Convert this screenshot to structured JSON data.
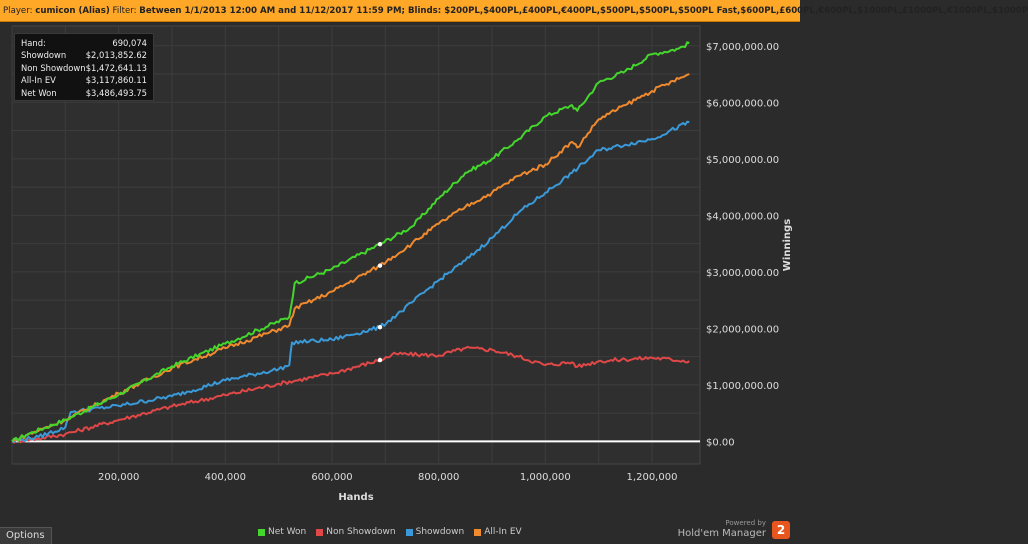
{
  "filter_bar": {
    "player_label": "Player:",
    "player_value": "cumicon (Alias)",
    "filter_label": "Filter:",
    "filter_value": "Between 1/1/2013 12:00 AM and 11/12/2017 11:59 PM; Blinds: $200PL,$400PL,£400PL,€400PL,$500PL,$500PL,$500PL Fast,$600PL,£600PL,€600PL,$1000PL,£1000PL,€1000PL,$1000P"
  },
  "stats": [
    {
      "label": "Hand:",
      "value": "690,074"
    },
    {
      "label": "Showdown",
      "value": "$2,013,852.62"
    },
    {
      "label": "Non Showdown",
      "value": "$1,472,641.13"
    },
    {
      "label": "All-In EV",
      "value": "$3,117,860.11"
    },
    {
      "label": "Net Won",
      "value": "$3,486,493.75"
    }
  ],
  "footer": {
    "options_label": "Options",
    "brand_small": "Powered by",
    "brand_name": "Hold'em Manager",
    "brand_badge": "2"
  },
  "chart_data": {
    "type": "line",
    "title": "",
    "xlabel": "Hands",
    "ylabel": "Winnings",
    "xlim": [
      0,
      1290000
    ],
    "ylim": [
      -400000,
      7350000
    ],
    "x_ticks": [
      200000,
      400000,
      600000,
      800000,
      1000000,
      1200000
    ],
    "x_tick_labels": [
      "200,000",
      "400,000",
      "600,000",
      "800,000",
      "1,000,000",
      "1,200,000"
    ],
    "y_ticks": [
      0,
      1000000,
      2000000,
      3000000,
      4000000,
      5000000,
      6000000,
      7000000
    ],
    "y_tick_labels": [
      "$0.00",
      "$1,000,000.00",
      "$2,000,000.00",
      "$3,000,000.00",
      "$4,000,000.00",
      "$5,000,000.00",
      "$6,000,000.00",
      "$7,000,000.00"
    ],
    "grid": true,
    "legend_position": "bottom",
    "series": [
      {
        "name": "Net Won",
        "color": "#44d62c",
        "points": [
          [
            0,
            0
          ],
          [
            30000,
            130000
          ],
          [
            100000,
            380000
          ],
          [
            200000,
            830000
          ],
          [
            300000,
            1330000
          ],
          [
            400000,
            1730000
          ],
          [
            520000,
            2200000
          ],
          [
            530000,
            2800000
          ],
          [
            600000,
            3050000
          ],
          [
            690000,
            3490000
          ],
          [
            750000,
            3800000
          ],
          [
            800000,
            4300000
          ],
          [
            850000,
            4750000
          ],
          [
            900000,
            5000000
          ],
          [
            950000,
            5350000
          ],
          [
            1000000,
            5750000
          ],
          [
            1050000,
            5950000
          ],
          [
            1060000,
            5850000
          ],
          [
            1100000,
            6350000
          ],
          [
            1150000,
            6550000
          ],
          [
            1200000,
            6850000
          ],
          [
            1250000,
            6950000
          ],
          [
            1270000,
            7050000
          ]
        ]
      },
      {
        "name": "Non Showdown",
        "color": "#e04848",
        "points": [
          [
            0,
            0
          ],
          [
            50000,
            50000
          ],
          [
            100000,
            130000
          ],
          [
            200000,
            380000
          ],
          [
            300000,
            620000
          ],
          [
            400000,
            820000
          ],
          [
            500000,
            1020000
          ],
          [
            600000,
            1200000
          ],
          [
            690000,
            1440000
          ],
          [
            720000,
            1550000
          ],
          [
            800000,
            1520000
          ],
          [
            850000,
            1650000
          ],
          [
            900000,
            1620000
          ],
          [
            950000,
            1500000
          ],
          [
            1000000,
            1350000
          ],
          [
            1050000,
            1400000
          ],
          [
            1060000,
            1320000
          ],
          [
            1100000,
            1420000
          ],
          [
            1150000,
            1450000
          ],
          [
            1200000,
            1480000
          ],
          [
            1270000,
            1420000
          ]
        ]
      },
      {
        "name": "Showdown",
        "color": "#3a9ad9",
        "points": [
          [
            0,
            0
          ],
          [
            50000,
            80000
          ],
          [
            100000,
            250000
          ],
          [
            110000,
            520000
          ],
          [
            200000,
            630000
          ],
          [
            300000,
            800000
          ],
          [
            400000,
            1080000
          ],
          [
            500000,
            1280000
          ],
          [
            520000,
            1350000
          ],
          [
            525000,
            1750000
          ],
          [
            600000,
            1800000
          ],
          [
            690000,
            2020000
          ],
          [
            730000,
            2300000
          ],
          [
            800000,
            2850000
          ],
          [
            850000,
            3200000
          ],
          [
            900000,
            3600000
          ],
          [
            950000,
            4050000
          ],
          [
            1000000,
            4400000
          ],
          [
            1050000,
            4750000
          ],
          [
            1100000,
            5150000
          ],
          [
            1150000,
            5250000
          ],
          [
            1200000,
            5350000
          ],
          [
            1270000,
            5650000
          ]
        ]
      },
      {
        "name": "All-In EV",
        "color": "#f08a2e",
        "points": [
          [
            0,
            0
          ],
          [
            30000,
            120000
          ],
          [
            100000,
            380000
          ],
          [
            200000,
            850000
          ],
          [
            300000,
            1300000
          ],
          [
            400000,
            1650000
          ],
          [
            520000,
            2050000
          ],
          [
            530000,
            2350000
          ],
          [
            600000,
            2650000
          ],
          [
            690000,
            3110000
          ],
          [
            750000,
            3500000
          ],
          [
            800000,
            3850000
          ],
          [
            850000,
            4150000
          ],
          [
            900000,
            4400000
          ],
          [
            950000,
            4700000
          ],
          [
            1000000,
            4900000
          ],
          [
            1050000,
            5300000
          ],
          [
            1060000,
            5200000
          ],
          [
            1100000,
            5700000
          ],
          [
            1150000,
            5950000
          ],
          [
            1200000,
            6200000
          ],
          [
            1270000,
            6500000
          ]
        ]
      }
    ],
    "markers_at_x": 690000
  }
}
